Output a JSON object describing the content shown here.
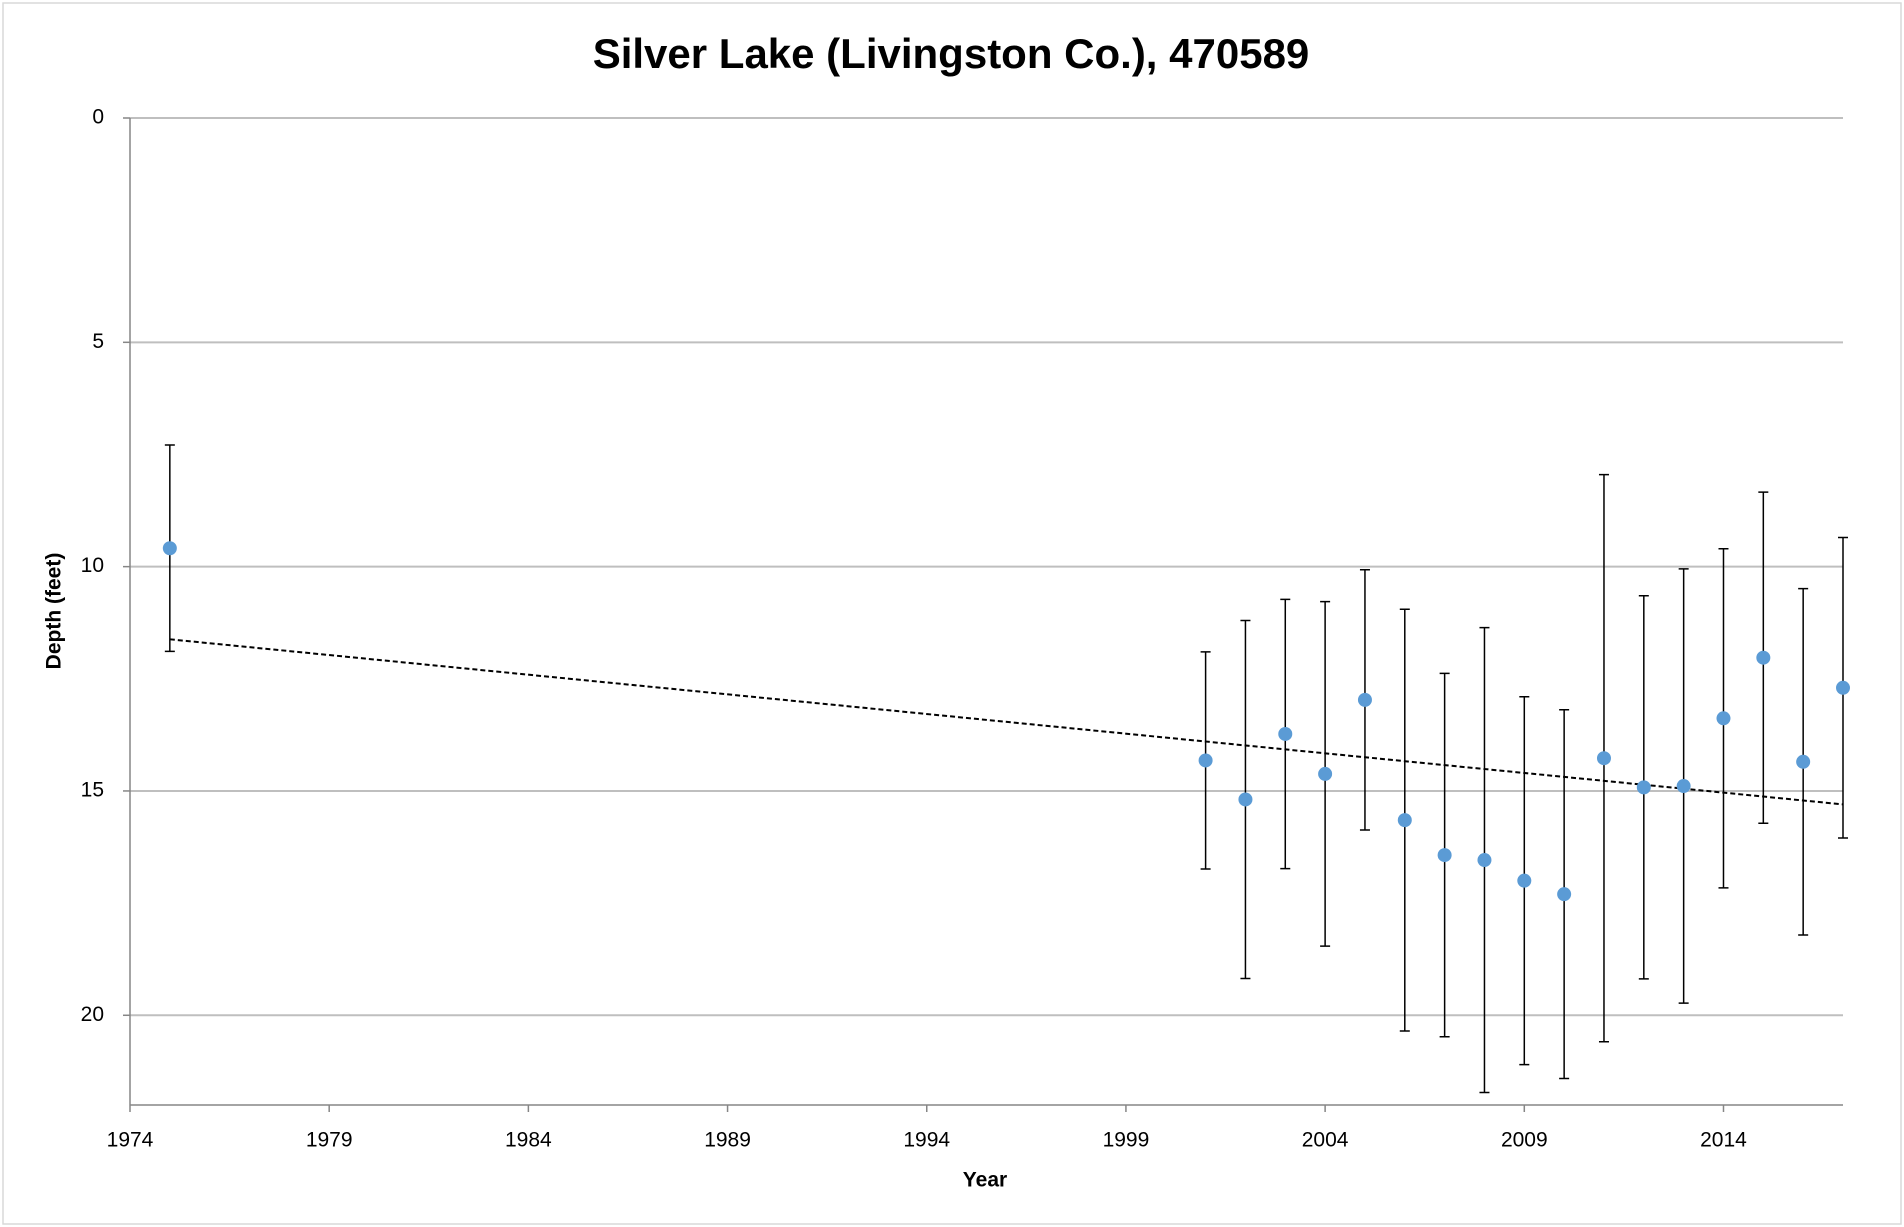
{
  "chart_data": {
    "type": "scatter",
    "title": "Silver Lake (Livingston Co.), 470589",
    "x_label": "Year",
    "y_label": "Depth (feet)",
    "y_inverted": true,
    "xlim": [
      1974,
      2017
    ],
    "xticks": [
      1974,
      1979,
      1984,
      1989,
      1994,
      1999,
      2004,
      2009,
      2014
    ],
    "ylim": [
      0,
      22
    ],
    "yticks": [
      0,
      5,
      10,
      15,
      20
    ],
    "grid": true,
    "series": [
      {
        "color": "#5b9bd5",
        "x": [
          1975,
          2001,
          2002,
          2003,
          2004,
          2005,
          2006,
          2007,
          2008,
          2009,
          2010,
          2011,
          2012,
          2013,
          2014,
          2015,
          2016,
          2017
        ],
        "values": [
          9.59,
          14.32,
          15.19,
          13.73,
          14.62,
          12.97,
          15.65,
          16.43,
          16.54,
          17.0,
          17.3,
          14.27,
          14.92,
          14.89,
          13.38,
          12.03,
          14.35,
          12.7
        ],
        "errors": [
          2.3,
          2.42,
          3.99,
          3.0,
          3.84,
          2.9,
          4.7,
          4.05,
          5.18,
          4.1,
          4.11,
          6.32,
          4.27,
          4.84,
          3.78,
          3.69,
          3.86,
          3.35
        ]
      }
    ],
    "trendline": {
      "x": [
        1975,
        2017
      ],
      "values": [
        11.62,
        15.3
      ],
      "color": "#000000"
    }
  }
}
